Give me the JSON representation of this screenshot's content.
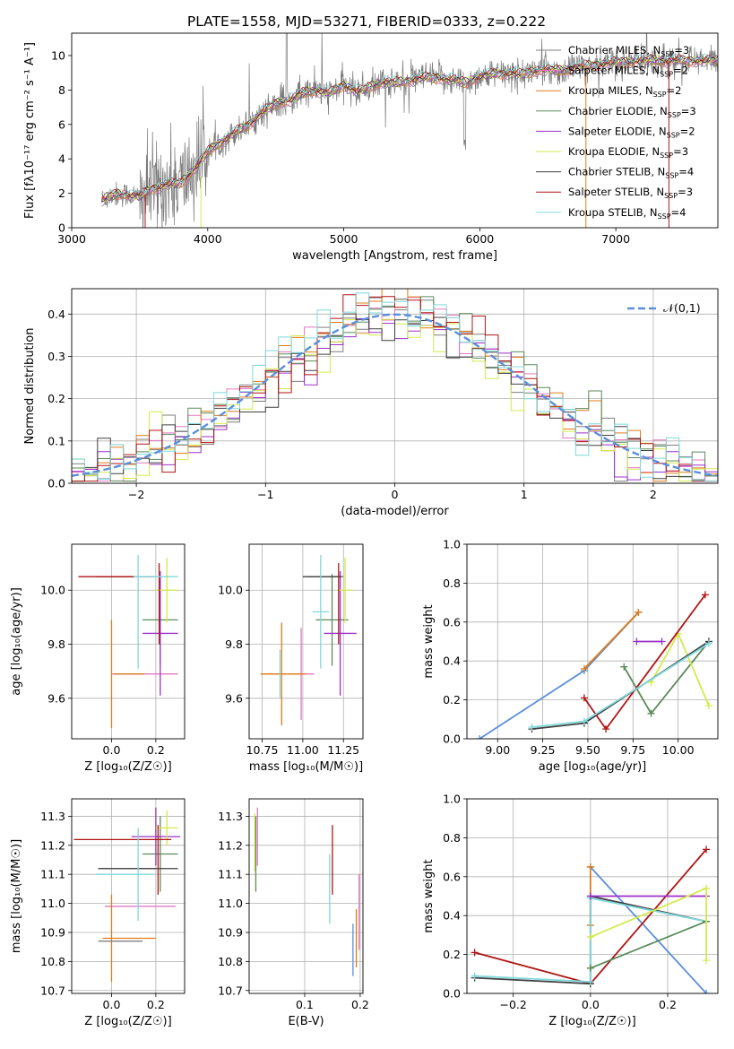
{
  "title": "PLATE=1558, MJD=53271, FIBERID=0333, z=0.222",
  "colors": {
    "chabrier_miles": "#7f7f7f",
    "salpeter_miles": "#e377c2",
    "kroupa_miles": "#e07b1a",
    "chabrier_elodie": "#5a8a5a",
    "salpeter_elodie": "#9b30c8",
    "kroupa_elodie": "#d4ea4c",
    "chabrier_stelib": "#404040",
    "salpeter_stelib": "#b01515",
    "kroupa_stelib": "#7fd8dc",
    "gauss": "#5b8fdc",
    "spectrum": "#7a7a7a"
  },
  "chart_data": [
    {
      "id": "spectrum",
      "type": "line",
      "title": "PLATE=1558, MJD=53271, FIBERID=0333, z=0.222",
      "xlabel": "wavelength [Angstrom, rest frame]",
      "ylabel": "Flux [fλ10⁻¹⁷ erg cm⁻² s⁻¹ A⁻¹]",
      "xlim": [
        3000,
        7750
      ],
      "ylim": [
        0,
        11.3
      ],
      "xticks": [
        3000,
        4000,
        5000,
        6000,
        7000
      ],
      "yticks": [
        0,
        2,
        4,
        6,
        8,
        10
      ],
      "legend": [
        "Chabrier MILES, N_SSP=3",
        "Salpeter MILES, N_SSP=2",
        "Kroupa MILES, N_SSP=2",
        "Chabrier ELODIE, N_SSP=3",
        "Salpeter ELODIE, N_SSP=2",
        "Kroupa ELODIE, N_SSP=3",
        "Chabrier STELIB, N_SSP=4",
        "Salpeter STELIB, N_SSP=3",
        "Kroupa STELIB, N_SSP=4"
      ],
      "legend_position": "upper right",
      "envelope": {
        "x": [
          3220,
          3300,
          3400,
          3500,
          3600,
          3700,
          3800,
          3900,
          4000,
          4100,
          4200,
          4300,
          4400,
          4500,
          4600,
          4700,
          4800,
          4900,
          5000,
          5100,
          5200,
          5300,
          5400,
          5500,
          5600,
          5700,
          5800,
          5900,
          6000,
          6100,
          6200,
          6300,
          6400,
          6500,
          6600,
          6700,
          6800,
          6900,
          7000,
          7100,
          7200,
          7300,
          7400,
          7500,
          7600,
          7750
        ],
        "y": [
          1.6,
          1.9,
          1.95,
          1.8,
          2.3,
          2.5,
          2.6,
          3.4,
          4.4,
          5.0,
          5.5,
          6.0,
          6.7,
          7.2,
          7.4,
          7.8,
          8.0,
          7.8,
          8.3,
          7.9,
          8.2,
          8.5,
          8.4,
          8.6,
          8.7,
          8.7,
          8.6,
          8.4,
          8.8,
          8.9,
          9.0,
          8.9,
          9.1,
          9.2,
          9.1,
          9.3,
          9.4,
          9.5,
          9.6,
          9.6,
          9.7,
          9.7,
          9.7,
          9.7,
          9.7,
          9.7
        ]
      }
    },
    {
      "id": "residuals",
      "type": "histogram",
      "xlabel": "(data-model)/error",
      "ylabel": "Normed distribution",
      "xlim": [
        -2.5,
        2.5
      ],
      "ylim": [
        0,
        0.46
      ],
      "xticks": [
        -2,
        -1,
        0,
        1,
        2
      ],
      "yticks": [
        0.0,
        0.1,
        0.2,
        0.3,
        0.4
      ],
      "legend": [
        "𝒩(0,1)"
      ],
      "legend_position": "upper right",
      "grid": true
    },
    {
      "id": "z_age",
      "type": "scatter",
      "subtype": "errorbar",
      "xlabel": "Z [log₁₀(Z/Z☉)]",
      "ylabel": "age  [log₁₀(age/yr)]",
      "xlim": [
        -0.18,
        0.33
      ],
      "ylim": [
        9.45,
        10.17
      ],
      "xticks": [
        0.0,
        0.2
      ],
      "yticks": [
        9.6,
        9.8,
        10.0
      ],
      "grid": true,
      "points": [
        {
          "model": "chabrier_miles",
          "x": 0.07,
          "y": 10.05,
          "xerr": 0.13,
          "yerr": 0.0
        },
        {
          "model": "salpeter_miles",
          "x": 0.15,
          "y": 9.69,
          "xerr": 0.15,
          "yerr": 0.0
        },
        {
          "model": "kroupa_miles",
          "x": 0.0,
          "y": 9.69,
          "xerr": 0.0,
          "yerr": 0.2
        },
        {
          "model": "kroupa_miles",
          "x": 0.08,
          "y": 9.69,
          "xerr": 0.07,
          "yerr": 0.0
        },
        {
          "model": "chabrier_elodie",
          "x": 0.22,
          "y": 9.89,
          "xerr": 0.08,
          "yerr": 0.17
        },
        {
          "model": "salpeter_elodie",
          "x": 0.22,
          "y": 9.84,
          "xerr": 0.08,
          "yerr": 0.23
        },
        {
          "model": "kroupa_elodie",
          "x": 0.25,
          "y": 10.0,
          "xerr": 0.05,
          "yerr": 0.12
        },
        {
          "model": "chabrier_stelib",
          "x": 0.06,
          "y": 10.05,
          "xerr": 0.13,
          "yerr": 0.0
        },
        {
          "model": "salpeter_stelib",
          "x": 0.02,
          "y": 10.05,
          "xerr": 0.17,
          "yerr": 0.0
        },
        {
          "model": "salpeter_stelib",
          "x": 0.215,
          "y": 9.95,
          "xerr": 0.0,
          "yerr": 0.15
        },
        {
          "model": "kroupa_stelib",
          "x": 0.12,
          "y": 9.92,
          "xerr": 0.0,
          "yerr": 0.21
        },
        {
          "model": "kroupa_stelib",
          "x": 0.2,
          "y": 10.05,
          "xerr": 0.1,
          "yerr": 0.0
        }
      ]
    },
    {
      "id": "mass_age",
      "type": "scatter",
      "subtype": "errorbar",
      "xlabel": "mass [log₁₀(M/M☉)]",
      "ylabel": "",
      "xlim": [
        10.67,
        11.37
      ],
      "ylim": [
        9.45,
        10.17
      ],
      "xticks": [
        10.75,
        11.0,
        11.25
      ],
      "yticks": [
        9.6,
        9.8,
        10.0
      ],
      "grid": true,
      "points": [
        {
          "model": "chabrier_miles",
          "x": 11.14,
          "y": 10.05,
          "xerr": 0.11,
          "yerr": 0.0
        },
        {
          "model": "salpeter_miles",
          "x": 10.99,
          "y": 9.69,
          "xerr": 0.08,
          "yerr": 0.17
        },
        {
          "model": "kroupa_miles",
          "x": 10.87,
          "y": 9.69,
          "xerr": 0.12,
          "yerr": 0.19
        },
        {
          "model": "kroupa_miles",
          "x": 10.88,
          "y": 9.69,
          "xerr": 0.14,
          "yerr": 0.0
        },
        {
          "model": "chabrier_elodie",
          "x": 11.18,
          "y": 9.89,
          "xerr": 0.1,
          "yerr": 0.17
        },
        {
          "model": "salpeter_elodie",
          "x": 11.23,
          "y": 9.84,
          "xerr": 0.1,
          "yerr": 0.23
        },
        {
          "model": "kroupa_elodie",
          "x": 11.26,
          "y": 10.0,
          "xerr": 0.05,
          "yerr": 0.12
        },
        {
          "model": "chabrier_stelib",
          "x": 11.12,
          "y": 10.05,
          "xerr": 0.12,
          "yerr": 0.0
        },
        {
          "model": "salpeter_stelib",
          "x": 11.22,
          "y": 9.95,
          "xerr": 0.0,
          "yerr": 0.15
        },
        {
          "model": "kroupa_stelib",
          "x": 11.11,
          "y": 9.92,
          "xerr": 0.05,
          "yerr": 0.21
        },
        {
          "model": "kroupa_stelib",
          "x": 10.86,
          "y": 9.69,
          "xerr": 0.0,
          "yerr": 0.09
        }
      ]
    },
    {
      "id": "age_weight",
      "type": "line",
      "xlabel": "age  [log₁₀(age/yr)]",
      "ylabel": "mass weight",
      "xlim": [
        8.83,
        10.22
      ],
      "ylim": [
        0.0,
        1.0
      ],
      "xticks": [
        9.0,
        9.25,
        9.5,
        9.75,
        10.0
      ],
      "yticks": [
        0.0,
        0.2,
        0.4,
        0.6,
        0.8,
        1.0
      ],
      "grid": true,
      "series": [
        {
          "model": "gauss",
          "x": [
            8.9,
            9.48,
            9.78
          ],
          "y": [
            0.0,
            0.35,
            0.65
          ]
        },
        {
          "model": "kroupa_miles",
          "x": [
            9.48,
            9.78
          ],
          "y": [
            0.36,
            0.65
          ]
        },
        {
          "model": "chabrier_elodie",
          "x": [
            9.7,
            9.85,
            10.17
          ],
          "y": [
            0.37,
            0.13,
            0.5
          ]
        },
        {
          "model": "salpeter_elodie",
          "x": [
            9.77,
            9.91
          ],
          "y": [
            0.5,
            0.5
          ]
        },
        {
          "model": "kroupa_elodie",
          "x": [
            9.85,
            10.0,
            10.17
          ],
          "y": [
            0.29,
            0.54,
            0.17
          ]
        },
        {
          "model": "chabrier_stelib",
          "x": [
            9.19,
            9.48,
            10.17
          ],
          "y": [
            0.05,
            0.08,
            0.5
          ]
        },
        {
          "model": "salpeter_stelib",
          "x": [
            9.48,
            9.6,
            10.15
          ],
          "y": [
            0.21,
            0.05,
            0.74
          ]
        },
        {
          "model": "kroupa_stelib",
          "x": [
            9.19,
            9.48,
            10.17
          ],
          "y": [
            0.06,
            0.09,
            0.49
          ]
        }
      ]
    },
    {
      "id": "z_mass",
      "type": "scatter",
      "subtype": "errorbar",
      "xlabel": "Z [log₁₀(Z/Z☉)]",
      "ylabel": "mass [log₁₀(M/M☉)]",
      "xlim": [
        -0.18,
        0.33
      ],
      "ylim": [
        10.69,
        11.36
      ],
      "xticks": [
        0.0,
        0.2
      ],
      "yticks": [
        10.7,
        10.8,
        10.9,
        11.0,
        11.1,
        11.2,
        11.3
      ],
      "grid": true,
      "points": [
        {
          "model": "chabrier_miles",
          "x": 0.07,
          "y": 11.12,
          "xerr": 0.13,
          "yerr": 0.0
        },
        {
          "model": "salpeter_miles",
          "x": 0.13,
          "y": 10.99,
          "xerr": 0.16,
          "yerr": 0.0
        },
        {
          "model": "kroupa_miles",
          "x": 0.0,
          "y": 10.88,
          "xerr": 0.0,
          "yerr": 0.15
        },
        {
          "model": "kroupa_miles",
          "x": 0.08,
          "y": 10.88,
          "xerr": 0.12,
          "yerr": 0.0
        },
        {
          "model": "chabrier_miles",
          "x": 0.04,
          "y": 10.87,
          "xerr": 0.1,
          "yerr": 0.0
        },
        {
          "model": "chabrier_elodie",
          "x": 0.22,
          "y": 11.17,
          "xerr": 0.08,
          "yerr": 0.13
        },
        {
          "model": "salpeter_elodie",
          "x": 0.2,
          "y": 11.23,
          "xerr": 0.11,
          "yerr": 0.1
        },
        {
          "model": "kroupa_elodie",
          "x": 0.25,
          "y": 11.26,
          "xerr": 0.05,
          "yerr": 0.06
        },
        {
          "model": "chabrier_stelib",
          "x": 0.12,
          "y": 11.12,
          "xerr": 0.18,
          "yerr": 0.0
        },
        {
          "model": "salpeter_stelib",
          "x": 0.05,
          "y": 11.22,
          "xerr": 0.22,
          "yerr": 0.0
        },
        {
          "model": "salpeter_stelib",
          "x": 0.21,
          "y": 11.15,
          "xerr": 0.0,
          "yerr": 0.12
        },
        {
          "model": "kroupa_stelib",
          "x": 0.12,
          "y": 11.1,
          "xerr": 0.0,
          "yerr": 0.16
        },
        {
          "model": "kroupa_stelib",
          "x": 0.06,
          "y": 11.1,
          "xerr": 0.13,
          "yerr": 0.0
        }
      ]
    },
    {
      "id": "ebv_mass",
      "type": "scatter",
      "subtype": "errorbar",
      "xlabel": "E(B-V)",
      "ylabel": "",
      "xlim": [
        0.0,
        0.205
      ],
      "ylim": [
        10.69,
        11.36
      ],
      "xticks": [
        0.1,
        0.2
      ],
      "yticks": [
        10.7,
        10.8,
        10.9,
        11.0,
        11.1,
        11.2,
        11.3
      ],
      "grid": true,
      "points": [
        {
          "model": "kroupa_elodie",
          "x": 0.01,
          "y": 11.21,
          "xerr": 0.0,
          "yerr": 0.1
        },
        {
          "model": "salpeter_miles",
          "x": 0.015,
          "y": 11.23,
          "xerr": 0.0,
          "yerr": 0.1
        },
        {
          "model": "chabrier_elodie",
          "x": 0.012,
          "y": 11.17,
          "xerr": 0.0,
          "yerr": 0.13
        },
        {
          "model": "salpeter_stelib",
          "x": 0.15,
          "y": 11.15,
          "xerr": 0.0,
          "yerr": 0.12
        },
        {
          "model": "kroupa_stelib",
          "x": 0.145,
          "y": 11.05,
          "xerr": 0.0,
          "yerr": 0.12
        },
        {
          "model": "gauss",
          "x": 0.187,
          "y": 10.84,
          "xerr": 0.0,
          "yerr": 0.09
        },
        {
          "model": "kroupa_miles",
          "x": 0.193,
          "y": 10.88,
          "xerr": 0.0,
          "yerr": 0.1
        },
        {
          "model": "salpeter_miles",
          "x": 0.198,
          "y": 10.97,
          "xerr": 0.0,
          "yerr": 0.13
        }
      ]
    },
    {
      "id": "z_weight",
      "type": "line",
      "xlabel": "Z [log₁₀(Z/Z☉)]",
      "ylabel": "mass weight",
      "xlim": [
        -0.32,
        0.33
      ],
      "ylim": [
        0.0,
        1.0
      ],
      "xticks": [
        -0.2,
        0.0,
        0.2
      ],
      "yticks": [
        0.0,
        0.2,
        0.4,
        0.6,
        0.8,
        1.0
      ],
      "grid": true,
      "series": [
        {
          "model": "gauss",
          "x": [
            0.0,
            0.3
          ],
          "y": [
            0.65,
            0.0
          ]
        },
        {
          "model": "kroupa_miles",
          "x": [
            0.0,
            0.0
          ],
          "y": [
            0.35,
            0.65
          ]
        },
        {
          "model": "salpeter_stelib",
          "x": [
            -0.3,
            0.0,
            0.3
          ],
          "y": [
            0.21,
            0.05,
            0.74
          ]
        },
        {
          "model": "chabrier_stelib",
          "x": [
            -0.3,
            0.0,
            0.0,
            0.3
          ],
          "y": [
            0.08,
            0.05,
            0.5,
            0.37
          ]
        },
        {
          "model": "kroupa_stelib",
          "x": [
            -0.3,
            0.0,
            0.0,
            0.3
          ],
          "y": [
            0.09,
            0.06,
            0.49,
            0.37
          ]
        },
        {
          "model": "chabrier_elodie",
          "x": [
            0.0,
            0.3
          ],
          "y": [
            0.13,
            0.37
          ]
        },
        {
          "model": "salpeter_elodie",
          "x": [
            0.0,
            0.3
          ],
          "y": [
            0.5,
            0.5
          ]
        },
        {
          "model": "kroupa_elodie",
          "x": [
            0.0,
            0.3,
            0.3
          ],
          "y": [
            0.29,
            0.54,
            0.17
          ]
        }
      ]
    }
  ]
}
